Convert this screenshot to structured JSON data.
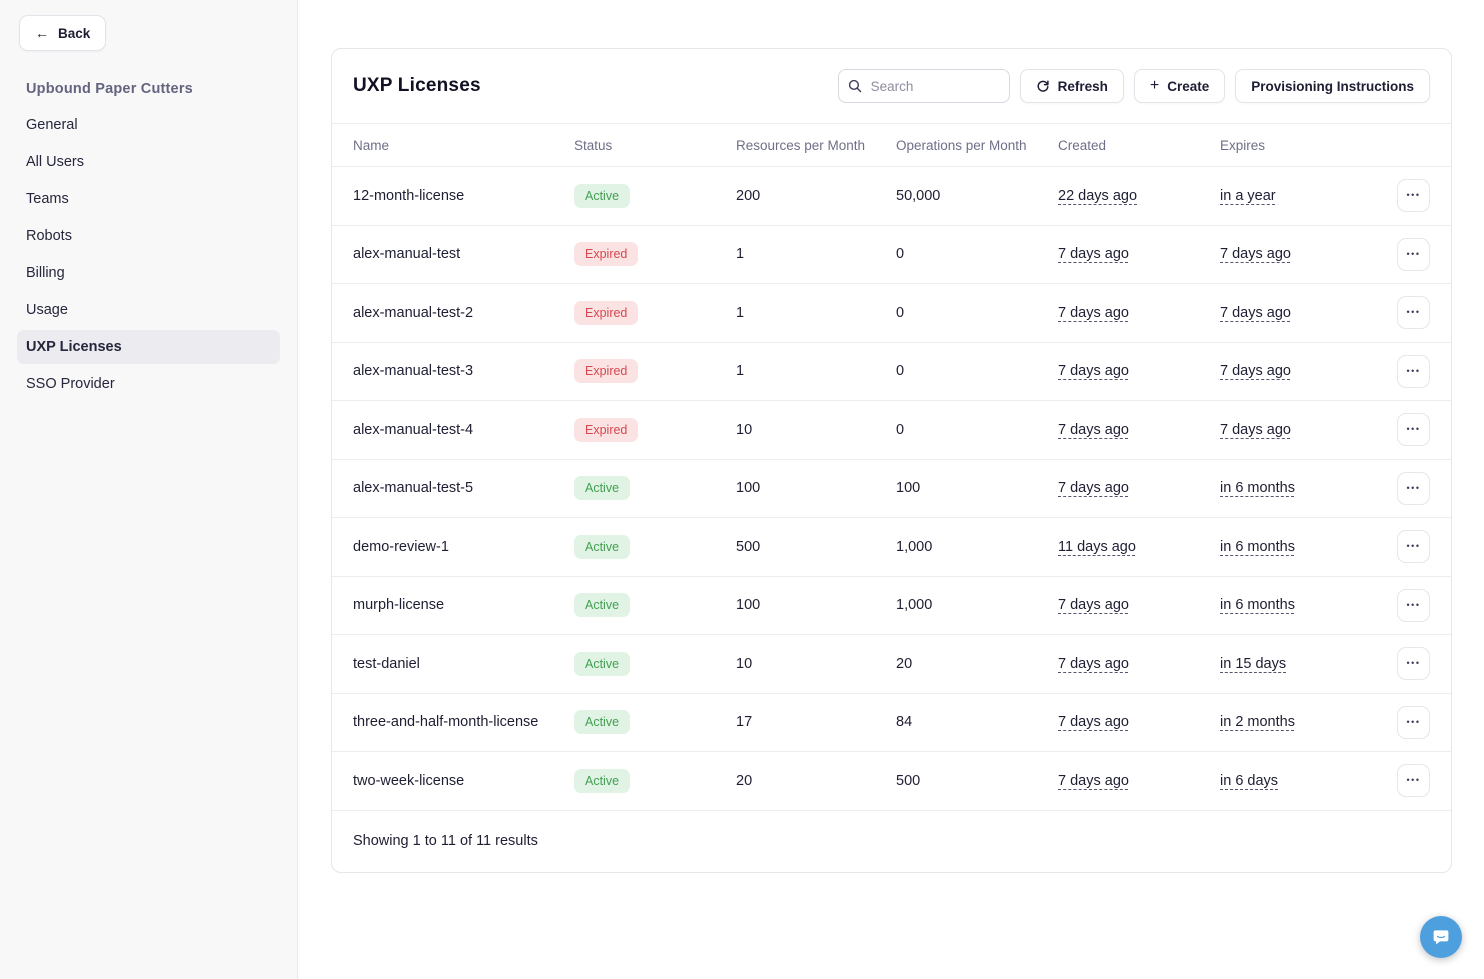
{
  "sidebar": {
    "back_label": "Back",
    "org_title": "Upbound Paper Cutters",
    "items": [
      {
        "label": "General",
        "active": false
      },
      {
        "label": "All Users",
        "active": false
      },
      {
        "label": "Teams",
        "active": false
      },
      {
        "label": "Robots",
        "active": false
      },
      {
        "label": "Billing",
        "active": false
      },
      {
        "label": "Usage",
        "active": false
      },
      {
        "label": "UXP Licenses",
        "active": true
      },
      {
        "label": "SSO Provider",
        "active": false
      }
    ]
  },
  "main": {
    "title": "UXP Licenses",
    "search_placeholder": "Search",
    "refresh_label": "Refresh",
    "create_label": "Create",
    "provisioning_label": "Provisioning Instructions",
    "table": {
      "columns": [
        "Name",
        "Status",
        "Resources per Month",
        "Operations per Month",
        "Created",
        "Expires"
      ],
      "rows": [
        {
          "name": "12-month-license",
          "status": "Active",
          "resources": "200",
          "operations": "50,000",
          "created": "22 days ago",
          "expires": "in a year"
        },
        {
          "name": "alex-manual-test",
          "status": "Expired",
          "resources": "1",
          "operations": "0",
          "created": "7 days ago",
          "expires": "7 days ago"
        },
        {
          "name": "alex-manual-test-2",
          "status": "Expired",
          "resources": "1",
          "operations": "0",
          "created": "7 days ago",
          "expires": "7 days ago"
        },
        {
          "name": "alex-manual-test-3",
          "status": "Expired",
          "resources": "1",
          "operations": "0",
          "created": "7 days ago",
          "expires": "7 days ago"
        },
        {
          "name": "alex-manual-test-4",
          "status": "Expired",
          "resources": "10",
          "operations": "0",
          "created": "7 days ago",
          "expires": "7 days ago"
        },
        {
          "name": "alex-manual-test-5",
          "status": "Active",
          "resources": "100",
          "operations": "100",
          "created": "7 days ago",
          "expires": "in 6 months"
        },
        {
          "name": "demo-review-1",
          "status": "Active",
          "resources": "500",
          "operations": "1,000",
          "created": "11 days ago",
          "expires": "in 6 months"
        },
        {
          "name": "murph-license",
          "status": "Active",
          "resources": "100",
          "operations": "1,000",
          "created": "7 days ago",
          "expires": "in 6 months"
        },
        {
          "name": "test-daniel",
          "status": "Active",
          "resources": "10",
          "operations": "20",
          "created": "7 days ago",
          "expires": "in 15 days"
        },
        {
          "name": "three-and-half-month-license",
          "status": "Active",
          "resources": "17",
          "operations": "84",
          "created": "7 days ago",
          "expires": "in 2 months"
        },
        {
          "name": "two-week-license",
          "status": "Active",
          "resources": "20",
          "operations": "500",
          "created": "7 days ago",
          "expires": "in 6 days"
        }
      ],
      "footer": "Showing 1 to 11 of 11 results"
    }
  },
  "icons": {
    "back": "←",
    "create_plus": "+",
    "row_actions": "•••"
  },
  "colors": {
    "org_title_text": "#64647f",
    "active_badge_bg": "#e1f3e5",
    "active_badge_text": "#43a052",
    "expired_badge_bg": "#fbe3e4",
    "expired_badge_text": "#d6484f",
    "chat_bubble": "#4e9fde"
  }
}
